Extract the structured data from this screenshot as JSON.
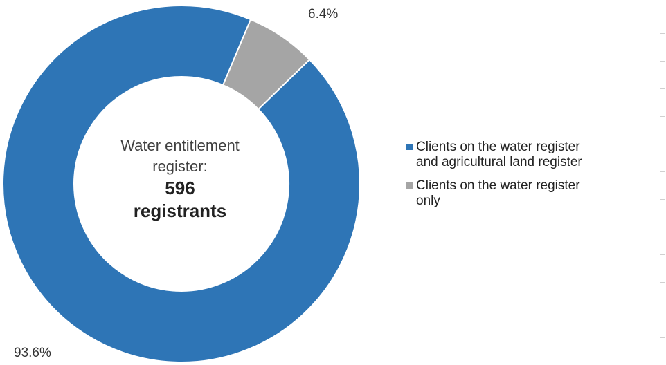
{
  "chart_data": {
    "type": "donut",
    "title": "",
    "center_label": {
      "line1": "Water entitlement",
      "line2": "register:",
      "line3": "596",
      "line4": "registrants"
    },
    "slices": [
      {
        "name": "Clients on the water register and agricultural land register",
        "value": 93.6,
        "label": "93.6%",
        "color": "#2E75B6"
      },
      {
        "name": "Clients on the water register only",
        "value": 6.4,
        "label": "6.4%",
        "color": "#A5A5A5"
      }
    ],
    "legend": {
      "placement": "right",
      "items": [
        {
          "line1": "Clients on the water register",
          "line2": "and agricultural land register",
          "color": "#2E75B6"
        },
        {
          "line1": "Clients on the water register",
          "line2": "only",
          "color": "#A5A5A5"
        }
      ]
    }
  }
}
